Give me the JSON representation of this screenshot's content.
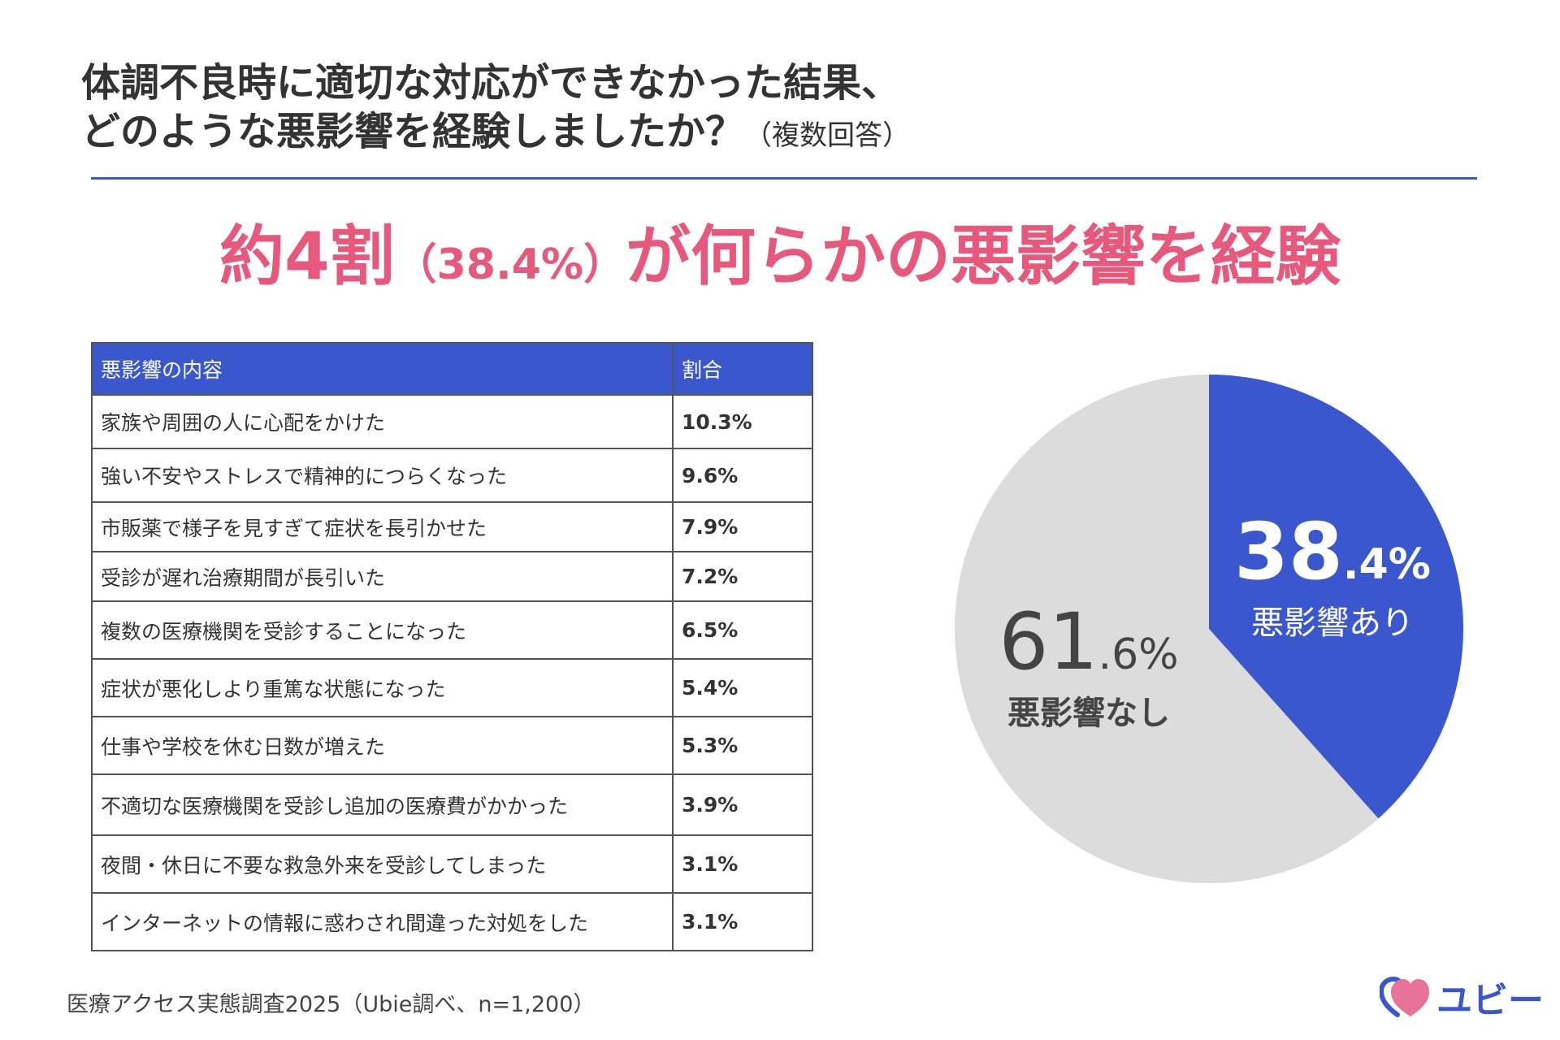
{
  "title": {
    "line1": "体調不良時に適切な対応ができなかった結果、",
    "line2": "どのような悪影響を経験しましたか？",
    "note": "（複数回答）"
  },
  "headline": {
    "main1": "約4割",
    "pct": "（38.4%）",
    "main2": "が何らかの悪影響を経験"
  },
  "table": {
    "headers": [
      "悪影響の内容",
      "割合"
    ],
    "rows": [
      {
        "label": "家族や周囲の人に心配をかけた",
        "value": "10.3%"
      },
      {
        "label": "強い不安やストレスで精神的につらくなった",
        "value": "9.6%"
      },
      {
        "label": "市販薬で様子を見すぎて症状を長引かせた",
        "value": "7.9%"
      },
      {
        "label": "受診が遅れ治療期間が長引いた",
        "value": "7.2%"
      },
      {
        "label": "複数の医療機関を受診することになった",
        "value": "6.5%"
      },
      {
        "label": "症状が悪化しより重篤な状態になった",
        "value": "5.4%"
      },
      {
        "label": "仕事や学校を休む日数が増えた",
        "value": "5.3%"
      },
      {
        "label": "不適切な医療機関を受診し追加の医療費がかかった",
        "value": "3.9%"
      },
      {
        "label": "夜間・休日に不要な救急外来を受診してしまった",
        "value": "3.1%"
      },
      {
        "label": "インターネットの情報に惑わされ間違った対処をした",
        "value": "3.1%"
      }
    ]
  },
  "chart_data": {
    "type": "pie",
    "slices": [
      {
        "name": "悪影響あり",
        "value": 38.4,
        "int_text": "38",
        "dec_text": ".4%",
        "color": "#3b57cd"
      },
      {
        "name": "悪影響なし",
        "value": 61.6,
        "int_text": "61",
        "dec_text": ".6%",
        "color": "#dcdcdc"
      }
    ]
  },
  "source": "医療アクセス実態調査2025（Ubie調べ、n=1,200）",
  "logo": {
    "text": "ユビー",
    "icon": "heart-logo-icon"
  },
  "colors": {
    "accent_blue": "#3b57cd",
    "headline_pink": "#e6587c",
    "pie_gray": "#dcdcdc"
  }
}
